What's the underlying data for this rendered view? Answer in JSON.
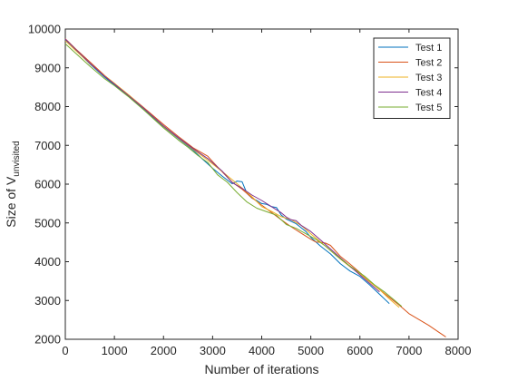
{
  "chart_data": {
    "type": "line",
    "title": "",
    "xlabel": "Number of iterations",
    "ylabel_main": "Size of V",
    "ylabel_sub": "unvisited",
    "xlim": [
      0,
      8000
    ],
    "ylim": [
      2000,
      10000
    ],
    "x_ticks": [
      0,
      1000,
      2000,
      3000,
      4000,
      5000,
      6000,
      7000,
      8000
    ],
    "y_ticks": [
      2000,
      3000,
      4000,
      5000,
      6000,
      7000,
      8000,
      9000,
      10000
    ],
    "x_tick_labels": [
      "0",
      "1000",
      "2000",
      "3000",
      "4000",
      "5000",
      "6000",
      "7000",
      "8000"
    ],
    "y_tick_labels": [
      "2000",
      "3000",
      "4000",
      "5000",
      "6000",
      "7000",
      "8000",
      "9000",
      "10000"
    ],
    "grid": false,
    "legend_position": "top-right",
    "series": [
      {
        "name": "Test 1",
        "color": "#0072BD",
        "x": [
          0,
          200,
          500,
          800,
          1000,
          1300,
          1600,
          2000,
          2300,
          2600,
          2800,
          3000,
          3200,
          3400,
          3500,
          3600,
          3700,
          3800,
          3900,
          4000,
          4100,
          4200,
          4300,
          4400,
          4500,
          4700,
          4900,
          5000,
          5200,
          5400,
          5600,
          5800,
          6000,
          6200,
          6400,
          6600
        ],
        "y": [
          9730,
          9480,
          9100,
          8760,
          8560,
          8250,
          7920,
          7480,
          7180,
          6880,
          6640,
          6410,
          6200,
          6010,
          6080,
          6060,
          5760,
          5640,
          5580,
          5500,
          5480,
          5420,
          5400,
          5200,
          5100,
          4980,
          4780,
          4630,
          4400,
          4200,
          3950,
          3760,
          3620,
          3400,
          3160,
          2920
        ]
      },
      {
        "name": "Test 2",
        "color": "#D95319",
        "x": [
          0,
          200,
          500,
          800,
          1000,
          1300,
          1600,
          2000,
          2300,
          2600,
          2900,
          3000,
          3200,
          3400,
          3600,
          3800,
          4000,
          4200,
          4400,
          4600,
          4800,
          5000,
          5100,
          5200,
          5300,
          5400,
          5600,
          5800,
          6000,
          6200,
          6400,
          6600,
          6800,
          7000,
          7200,
          7400,
          7600,
          7750
        ],
        "y": [
          9750,
          9500,
          9150,
          8800,
          8600,
          8290,
          7970,
          7540,
          7230,
          6940,
          6720,
          6580,
          6310,
          6050,
          5870,
          5650,
          5460,
          5270,
          5080,
          4900,
          4740,
          4580,
          4510,
          4500,
          4480,
          4420,
          4140,
          3940,
          3720,
          3500,
          3280,
          3080,
          2880,
          2660,
          2510,
          2360,
          2190,
          2060
        ]
      },
      {
        "name": "Test 3",
        "color": "#EDB120",
        "x": [
          0,
          200,
          500,
          800,
          1000,
          1300,
          1600,
          2000,
          2300,
          2600,
          2900,
          3200,
          3500,
          3800,
          4000,
          4200,
          4400,
          4600,
          4800,
          5000,
          5200,
          5400,
          5600,
          5800,
          6000,
          6200,
          6400,
          6600,
          6800
        ],
        "y": [
          9700,
          9460,
          9110,
          8790,
          8600,
          8290,
          7950,
          7490,
          7190,
          6900,
          6620,
          6320,
          6010,
          5680,
          5420,
          5300,
          5160,
          5080,
          4940,
          4720,
          4510,
          4290,
          4070,
          3870,
          3690,
          3480,
          3280,
          3040,
          2820
        ]
      },
      {
        "name": "Test 4",
        "color": "#7E2F8E",
        "x": [
          0,
          200,
          500,
          800,
          1000,
          1300,
          1600,
          2000,
          2300,
          2600,
          2900,
          3200,
          3400,
          3600,
          3800,
          4000,
          4200,
          4400,
          4500,
          4600,
          4700,
          4800,
          5000,
          5200,
          5400,
          5600,
          5800,
          6000,
          6200,
          6400
        ],
        "y": [
          9740,
          9490,
          9120,
          8780,
          8580,
          8270,
          7950,
          7500,
          7200,
          6920,
          6660,
          6330,
          6040,
          5890,
          5720,
          5580,
          5420,
          5260,
          5150,
          5080,
          5060,
          4940,
          4780,
          4560,
          4330,
          4100,
          3880,
          3660,
          3440,
          3220
        ]
      },
      {
        "name": "Test 5",
        "color": "#77AC30",
        "x": [
          0,
          200,
          500,
          800,
          1000,
          1300,
          1600,
          2000,
          2300,
          2500,
          2700,
          2900,
          3100,
          3300,
          3500,
          3700,
          3900,
          4100,
          4300,
          4500,
          4700,
          4900,
          5100,
          5300,
          5500,
          5700,
          5900,
          6100,
          6300,
          6500,
          6700,
          6850
        ],
        "y": [
          9620,
          9390,
          9040,
          8720,
          8540,
          8240,
          7910,
          7450,
          7140,
          6950,
          6740,
          6560,
          6240,
          6050,
          5780,
          5540,
          5380,
          5290,
          5200,
          4960,
          4860,
          4720,
          4580,
          4400,
          4180,
          3980,
          3800,
          3620,
          3400,
          3220,
          3010,
          2850
        ]
      }
    ]
  }
}
